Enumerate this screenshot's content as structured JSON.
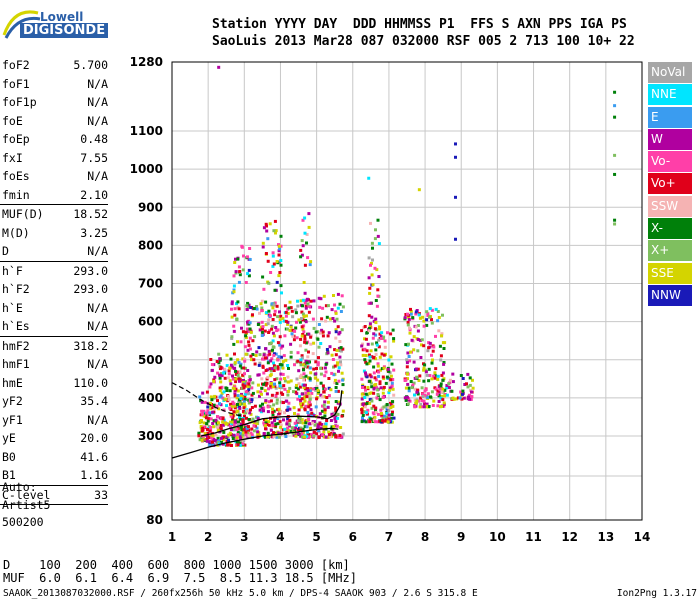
{
  "logo": {
    "top": "Lowell",
    "bottom": "DIGISONDE"
  },
  "header": {
    "line1": "Station YYYY DAY  DDD HHMMSS P1  FFS S AXN PPS IGA PS",
    "line2": "SaoLuis 2013 Mar28 087 032000 RSF 005 2 713 100 10+ 22"
  },
  "params_a": [
    {
      "name": "foF2",
      "value": "5.700"
    },
    {
      "name": "foF1",
      "value": "N/A"
    },
    {
      "name": "foF1p",
      "value": "N/A"
    },
    {
      "name": "foE",
      "value": "N/A"
    },
    {
      "name": "foEp",
      "value": "0.48"
    },
    {
      "name": "fxI",
      "value": "7.55"
    },
    {
      "name": "foEs",
      "value": "N/A"
    },
    {
      "name": "fmin",
      "value": "2.10"
    }
  ],
  "params_b": [
    {
      "name": "MUF(D)",
      "value": "18.52"
    },
    {
      "name": "M(D)",
      "value": "3.25"
    },
    {
      "name": "D",
      "value": "N/A"
    }
  ],
  "params_c": [
    {
      "name": "h`F",
      "value": "293.0"
    },
    {
      "name": "h`F2",
      "value": "293.0"
    },
    {
      "name": "h`E",
      "value": "N/A"
    },
    {
      "name": "h`Es",
      "value": "N/A"
    }
  ],
  "params_d": [
    {
      "name": "hmF2",
      "value": "318.2"
    },
    {
      "name": "hmF1",
      "value": "N/A"
    },
    {
      "name": "hmE",
      "value": "110.0"
    },
    {
      "name": "yF2",
      "value": "35.4"
    },
    {
      "name": "yF1",
      "value": "N/A"
    },
    {
      "name": "yE",
      "value": "20.0"
    },
    {
      "name": "B0",
      "value": "41.6"
    },
    {
      "name": "B1",
      "value": "1.16"
    }
  ],
  "params_e": [
    {
      "name": "C-level",
      "value": "33"
    }
  ],
  "auto": {
    "line1": "Auto:",
    "line2": "Artist5",
    "line3": "500200"
  },
  "legend": [
    {
      "label": "NoVal",
      "color": "#a6a6a6"
    },
    {
      "label": "NNE",
      "color": "#00e5ff"
    },
    {
      "label": "E",
      "color": "#3a9cf0"
    },
    {
      "label": "W",
      "color": "#b0009f"
    },
    {
      "label": "Vo-",
      "color": "#ff3fa8"
    },
    {
      "label": "Vo+",
      "color": "#e0001a"
    },
    {
      "label": "SSW",
      "color": "#f5b3b3"
    },
    {
      "label": "X-",
      "color": "#00800a"
    },
    {
      "label": "X+",
      "color": "#7fbf5f"
    },
    {
      "label": "SSE",
      "color": "#d4d400"
    },
    {
      "label": "NNW",
      "color": "#1a1ab8"
    }
  ],
  "footer": {
    "line1": "D    100  200  400  600  800 1000 1500 3000 [km]",
    "line2": "MUF  6.0  6.1  6.4  6.9  7.5  8.5 11.3 18.5 [MHz]",
    "line3": "SAAOK_2013087032000.RSF / 260fx256h 50 kHz 5.0 km / DPS-4 SAAOK 903 / 2.6 S 315.8 E",
    "right": "Ion2Png 1.3.17"
  },
  "chart_data": {
    "type": "scatter",
    "x_ticks": [
      1,
      2,
      3,
      4,
      5,
      6,
      7,
      8,
      9,
      10,
      11,
      12,
      13,
      14
    ],
    "y_ticks": [
      80,
      200,
      300,
      400,
      500,
      600,
      700,
      800,
      900,
      1000,
      1100,
      1280
    ],
    "xlim": [
      1,
      14
    ],
    "y_axis_scale": "compressed near 80 and 1280 (ionogram height scale)",
    "grid": true,
    "points": [
      {
        "x": 2.25,
        "y": 1270,
        "color": "#b0009f"
      },
      {
        "x": 13.2,
        "y": 1205,
        "color": "#00800a"
      },
      {
        "x": 13.2,
        "y": 1170,
        "color": "#3a9cf0"
      },
      {
        "x": 13.2,
        "y": 1140,
        "color": "#00800a"
      },
      {
        "x": 13.2,
        "y": 1040,
        "color": "#7fbf5f"
      },
      {
        "x": 13.2,
        "y": 990,
        "color": "#00800a"
      },
      {
        "x": 13.2,
        "y": 870,
        "color": "#00800a"
      },
      {
        "x": 13.2,
        "y": 860,
        "color": "#7fbf5f"
      },
      {
        "x": 8.8,
        "y": 1070,
        "color": "#1a1ab8"
      },
      {
        "x": 8.8,
        "y": 1035,
        "color": "#1a1ab8"
      },
      {
        "x": 8.8,
        "y": 930,
        "color": "#1a1ab8"
      },
      {
        "x": 8.8,
        "y": 820,
        "color": "#1a1ab8"
      },
      {
        "x": 6.4,
        "y": 980,
        "color": "#00e5ff"
      },
      {
        "x": 7.8,
        "y": 950,
        "color": "#d4d400"
      }
    ],
    "clusters": [
      {
        "x_min": 1.7,
        "x_max": 2.0,
        "y_min": 290,
        "y_max": 420,
        "n": 70
      },
      {
        "x_min": 2.0,
        "x_max": 3.0,
        "y_min": 280,
        "y_max": 520,
        "n": 320
      },
      {
        "x_min": 2.6,
        "x_max": 3.2,
        "y_min": 320,
        "y_max": 810,
        "n": 150
      },
      {
        "x_min": 3.0,
        "x_max": 4.0,
        "y_min": 300,
        "y_max": 660,
        "n": 260
      },
      {
        "x_min": 3.4,
        "x_max": 4.0,
        "y_min": 330,
        "y_max": 880,
        "n": 110
      },
      {
        "x_min": 4.0,
        "x_max": 5.0,
        "y_min": 300,
        "y_max": 660,
        "n": 280
      },
      {
        "x_min": 4.5,
        "x_max": 4.8,
        "y_min": 380,
        "y_max": 890,
        "n": 90
      },
      {
        "x_min": 5.0,
        "x_max": 5.7,
        "y_min": 300,
        "y_max": 680,
        "n": 200
      },
      {
        "x_min": 6.2,
        "x_max": 7.1,
        "y_min": 340,
        "y_max": 600,
        "n": 260
      },
      {
        "x_min": 6.4,
        "x_max": 6.7,
        "y_min": 580,
        "y_max": 900,
        "n": 40
      },
      {
        "x_min": 7.4,
        "x_max": 8.5,
        "y_min": 380,
        "y_max": 640,
        "n": 230
      },
      {
        "x_min": 8.3,
        "x_max": 9.3,
        "y_min": 400,
        "y_max": 470,
        "n": 60
      }
    ],
    "profile_curve": {
      "x": [
        1.0,
        1.5,
        2.0,
        2.5,
        3.0,
        3.5,
        4.0,
        4.5,
        5.0,
        5.4,
        5.6
      ],
      "y": [
        245,
        258,
        272,
        283,
        292,
        300,
        305,
        311,
        317,
        320,
        318
      ]
    },
    "trace_curve": {
      "x": [
        1.8,
        2.2,
        2.6,
        3.0,
        3.5,
        4.0,
        4.5,
        5.0,
        5.3,
        5.5,
        5.65,
        5.7
      ],
      "y": [
        300,
        308,
        320,
        330,
        345,
        350,
        352,
        350,
        345,
        355,
        380,
        420
      ]
    },
    "dashed_curve": {
      "x": [
        1.0,
        1.4,
        1.8,
        2.2,
        2.6,
        3.0
      ],
      "y": [
        440,
        420,
        395,
        375,
        360,
        350
      ]
    }
  }
}
